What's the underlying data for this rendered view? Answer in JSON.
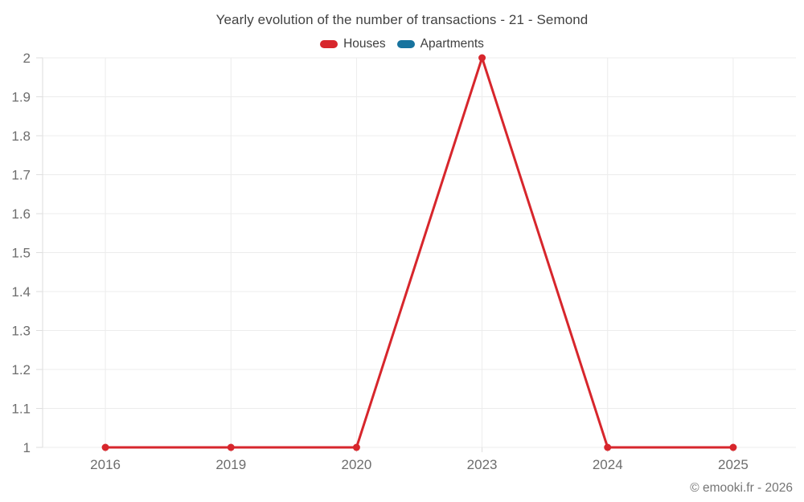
{
  "chart": {
    "title": "Yearly evolution of the number of transactions - 21 - Semond",
    "copyright": "© emooki.fr - 2026"
  },
  "legend": {
    "items": [
      {
        "label": "Houses",
        "color": "#d7262c"
      },
      {
        "label": "Apartments",
        "color": "#17739e"
      }
    ]
  },
  "chart_data": {
    "type": "line",
    "title": "Yearly evolution of the number of transactions - 21 - Semond",
    "categories": [
      "2016",
      "2019",
      "2020",
      "2023",
      "2024",
      "2025"
    ],
    "series": [
      {
        "name": "Houses",
        "color": "#d7262c",
        "values": [
          1,
          1,
          1,
          2,
          1,
          1
        ]
      },
      {
        "name": "Apartments",
        "color": "#17739e",
        "values": [
          null,
          null,
          null,
          null,
          null,
          null
        ]
      }
    ],
    "xlabel": "",
    "ylabel": "",
    "ylim": [
      1,
      2
    ],
    "yticks": [
      1,
      1.1,
      1.2,
      1.3,
      1.4,
      1.5,
      1.6,
      1.7,
      1.8,
      1.9,
      2
    ],
    "grid": true,
    "legend_position": "top"
  }
}
